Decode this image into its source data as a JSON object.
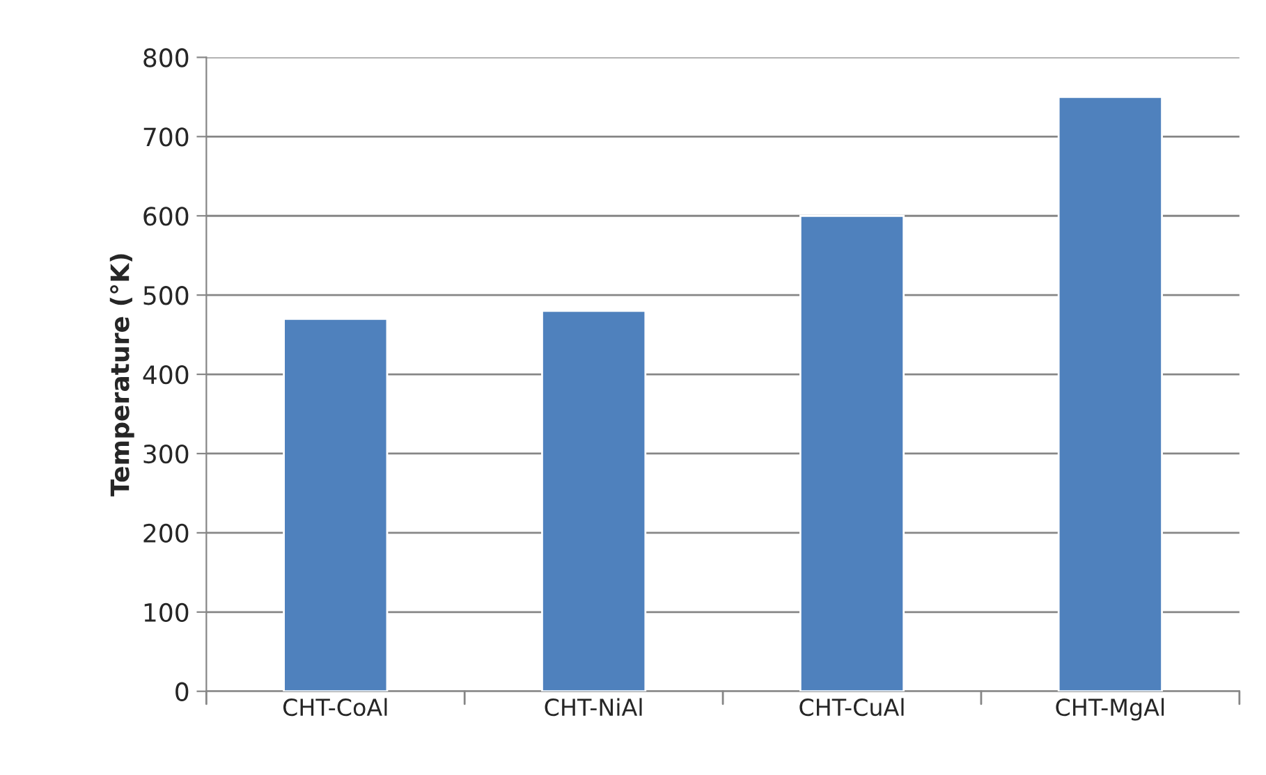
{
  "chart_data": {
    "type": "bar",
    "ylabel": "Temperature (°K)",
    "categories": [
      "CHT-CoAl",
      "CHT-NiAl",
      "CHT-CuAl",
      "CHT-MgAl"
    ],
    "values": [
      470,
      480,
      600,
      750
    ],
    "color": "#4f81bd",
    "ylim": [
      0,
      800
    ],
    "yticks": [
      0,
      100,
      200,
      300,
      400,
      500,
      600,
      700,
      800
    ],
    "grid": "y"
  }
}
